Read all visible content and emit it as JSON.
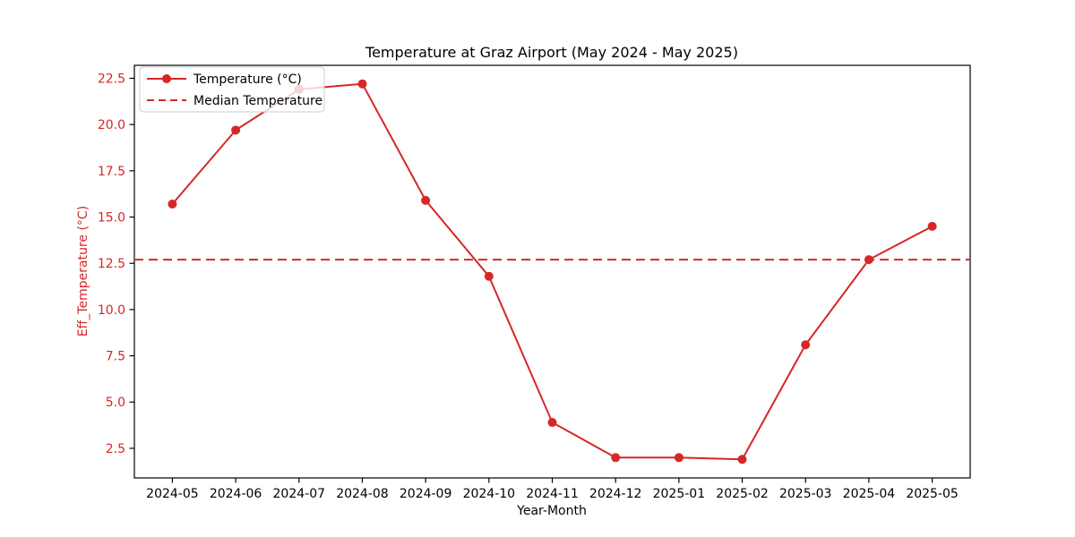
{
  "figure": {
    "title": "Temperature at Graz Airport (May 2024 - May 2025)"
  },
  "chart_data": {
    "type": "line",
    "title": "Temperature at Graz Airport (May 2024 - May 2025)",
    "xlabel": "Year-Month",
    "ylabel": "Eff_Temperature (°C)",
    "categories": [
      "2024-05",
      "2024-06",
      "2024-07",
      "2024-08",
      "2024-09",
      "2024-10",
      "2024-11",
      "2024-12",
      "2025-01",
      "2025-02",
      "2025-03",
      "2025-04",
      "2025-05"
    ],
    "series": [
      {
        "name": "Temperature (°C)",
        "type": "line-with-markers",
        "color": "#d62728",
        "values": [
          15.7,
          19.7,
          21.9,
          22.2,
          15.9,
          11.8,
          3.9,
          2.0,
          2.0,
          1.9,
          8.1,
          12.7,
          14.5
        ]
      },
      {
        "name": "Median Temperature",
        "type": "horizontal-dashed-line",
        "color": "#d62728",
        "value": 12.7
      }
    ],
    "yticks": [
      2.5,
      5.0,
      7.5,
      10.0,
      12.5,
      15.0,
      17.5,
      20.0,
      22.5
    ],
    "ylim": [
      0.9,
      23.2
    ],
    "grid": false,
    "legend": {
      "position": "upper-left",
      "entries": [
        "Temperature (°C)",
        "Median Temperature"
      ]
    },
    "colors": {
      "line": "#d62728",
      "median_line": "#d62728",
      "y_tick_labels": "#d62728",
      "y_axis_label": "#d62728",
      "x_tick_labels": "#000000",
      "axes": "#000000",
      "legend_border": "#cccccc"
    }
  }
}
